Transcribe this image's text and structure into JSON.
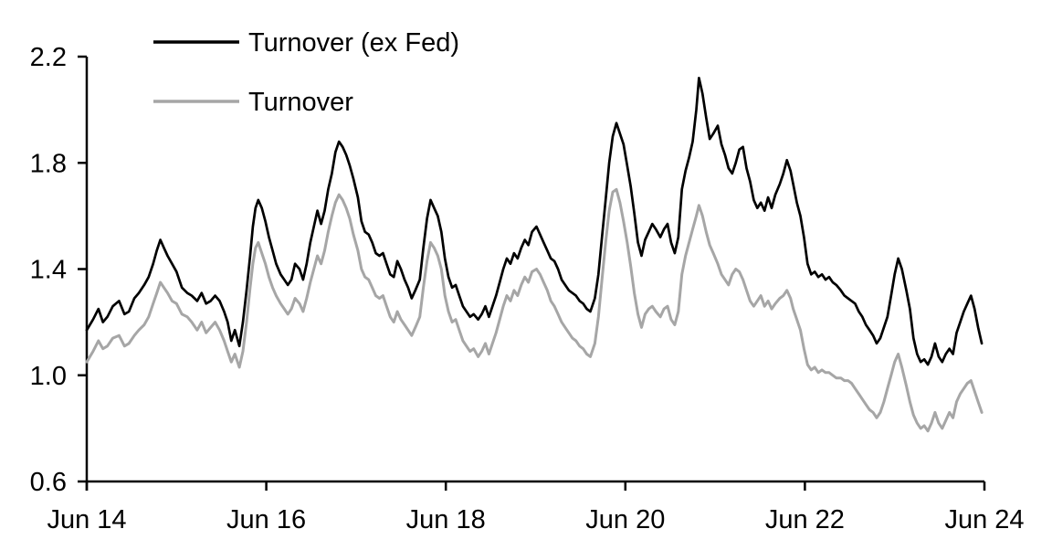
{
  "chart_data": {
    "type": "line",
    "title": "",
    "background": "#ffffff",
    "axis_color": "#000000",
    "grid": false,
    "legend_position": "top-left-inside",
    "x_axis": {
      "tick_labels": [
        "Jun 14",
        "Jun 16",
        "Jun 18",
        "Jun 20",
        "Jun 22",
        "Jun 24"
      ],
      "tick_positions": [
        0,
        2,
        4,
        6,
        8,
        10
      ],
      "range": [
        0,
        10
      ],
      "unit": "years since Jun 2014"
    },
    "y_axis": {
      "tick_labels": [
        "0.6",
        "1.0",
        "1.4",
        "1.8",
        "2.2"
      ],
      "tick_values": [
        0.6,
        1.0,
        1.4,
        1.8,
        2.2
      ],
      "range": [
        0.6,
        2.2
      ]
    },
    "t": [
      0.0,
      0.07,
      0.13,
      0.18,
      0.23,
      0.29,
      0.36,
      0.42,
      0.47,
      0.53,
      0.58,
      0.64,
      0.69,
      0.74,
      0.78,
      0.82,
      0.86,
      0.9,
      0.95,
      1.0,
      1.06,
      1.12,
      1.17,
      1.23,
      1.28,
      1.33,
      1.38,
      1.43,
      1.48,
      1.53,
      1.57,
      1.61,
      1.65,
      1.7,
      1.74,
      1.78,
      1.82,
      1.85,
      1.88,
      1.91,
      1.95,
      1.99,
      2.03,
      2.07,
      2.11,
      2.16,
      2.2,
      2.24,
      2.28,
      2.32,
      2.37,
      2.41,
      2.45,
      2.49,
      2.53,
      2.57,
      2.61,
      2.65,
      2.69,
      2.73,
      2.77,
      2.81,
      2.85,
      2.89,
      2.93,
      2.97,
      3.02,
      3.06,
      3.1,
      3.14,
      3.18,
      3.22,
      3.26,
      3.3,
      3.34,
      3.38,
      3.42,
      3.46,
      3.5,
      3.54,
      3.58,
      3.62,
      3.66,
      3.71,
      3.75,
      3.79,
      3.83,
      3.87,
      3.91,
      3.95,
      3.99,
      4.03,
      4.07,
      4.11,
      4.15,
      4.19,
      4.23,
      4.27,
      4.31,
      4.36,
      4.4,
      4.44,
      4.48,
      4.52,
      4.56,
      4.6,
      4.64,
      4.68,
      4.72,
      4.76,
      4.8,
      4.84,
      4.88,
      4.92,
      4.96,
      5.01,
      5.05,
      5.09,
      5.13,
      5.17,
      5.21,
      5.25,
      5.29,
      5.33,
      5.37,
      5.41,
      5.45,
      5.49,
      5.53,
      5.57,
      5.61,
      5.66,
      5.7,
      5.74,
      5.78,
      5.82,
      5.86,
      5.9,
      5.94,
      5.98,
      6.02,
      6.06,
      6.1,
      6.14,
      6.18,
      6.22,
      6.26,
      6.3,
      6.34,
      6.39,
      6.43,
      6.47,
      6.51,
      6.55,
      6.59,
      6.63,
      6.67,
      6.71,
      6.75,
      6.79,
      6.82,
      6.86,
      6.9,
      6.94,
      6.98,
      7.03,
      7.07,
      7.11,
      7.15,
      7.19,
      7.23,
      7.27,
      7.31,
      7.35,
      7.39,
      7.43,
      7.47,
      7.51,
      7.55,
      7.59,
      7.63,
      7.67,
      7.72,
      7.76,
      7.8,
      7.84,
      7.87,
      7.91,
      7.95,
      7.99,
      8.03,
      8.07,
      8.11,
      8.15,
      8.19,
      8.23,
      8.27,
      8.31,
      8.35,
      8.4,
      8.44,
      8.48,
      8.52,
      8.56,
      8.6,
      8.64,
      8.68,
      8.72,
      8.76,
      8.8,
      8.84,
      8.88,
      8.92,
      8.96,
      9.0,
      9.04,
      9.08,
      9.13,
      9.17,
      9.21,
      9.25,
      9.29,
      9.33,
      9.37,
      9.41,
      9.45,
      9.49,
      9.53,
      9.57,
      9.61,
      9.65,
      9.69,
      9.73,
      9.77,
      9.81,
      9.85,
      9.89,
      9.93,
      9.97
    ],
    "series": [
      {
        "name": "Turnover (ex Fed)",
        "color": "#000000",
        "stroke_width": 2.7,
        "values": [
          1.17,
          1.21,
          1.25,
          1.2,
          1.22,
          1.26,
          1.28,
          1.23,
          1.24,
          1.29,
          1.31,
          1.34,
          1.37,
          1.42,
          1.47,
          1.51,
          1.48,
          1.45,
          1.42,
          1.39,
          1.33,
          1.31,
          1.3,
          1.28,
          1.31,
          1.27,
          1.28,
          1.3,
          1.28,
          1.24,
          1.2,
          1.13,
          1.17,
          1.11,
          1.2,
          1.32,
          1.45,
          1.56,
          1.63,
          1.66,
          1.63,
          1.58,
          1.52,
          1.47,
          1.42,
          1.38,
          1.36,
          1.34,
          1.36,
          1.42,
          1.4,
          1.36,
          1.42,
          1.5,
          1.56,
          1.62,
          1.57,
          1.62,
          1.7,
          1.76,
          1.84,
          1.88,
          1.86,
          1.83,
          1.79,
          1.74,
          1.67,
          1.58,
          1.54,
          1.53,
          1.5,
          1.46,
          1.45,
          1.46,
          1.42,
          1.38,
          1.37,
          1.43,
          1.4,
          1.36,
          1.33,
          1.29,
          1.32,
          1.36,
          1.48,
          1.59,
          1.66,
          1.63,
          1.6,
          1.54,
          1.44,
          1.37,
          1.33,
          1.34,
          1.3,
          1.26,
          1.24,
          1.22,
          1.23,
          1.21,
          1.23,
          1.26,
          1.22,
          1.26,
          1.3,
          1.35,
          1.4,
          1.44,
          1.42,
          1.46,
          1.44,
          1.48,
          1.51,
          1.49,
          1.54,
          1.56,
          1.53,
          1.5,
          1.47,
          1.44,
          1.43,
          1.4,
          1.36,
          1.34,
          1.32,
          1.31,
          1.3,
          1.28,
          1.27,
          1.25,
          1.24,
          1.29,
          1.38,
          1.52,
          1.66,
          1.8,
          1.9,
          1.95,
          1.91,
          1.87,
          1.79,
          1.71,
          1.61,
          1.5,
          1.45,
          1.51,
          1.54,
          1.57,
          1.55,
          1.52,
          1.55,
          1.57,
          1.5,
          1.46,
          1.52,
          1.7,
          1.77,
          1.82,
          1.88,
          2.0,
          2.12,
          2.06,
          1.97,
          1.89,
          1.91,
          1.94,
          1.87,
          1.83,
          1.78,
          1.76,
          1.8,
          1.85,
          1.86,
          1.78,
          1.73,
          1.66,
          1.63,
          1.65,
          1.62,
          1.67,
          1.63,
          1.68,
          1.72,
          1.76,
          1.81,
          1.77,
          1.72,
          1.65,
          1.6,
          1.52,
          1.42,
          1.38,
          1.39,
          1.37,
          1.38,
          1.36,
          1.37,
          1.35,
          1.34,
          1.32,
          1.3,
          1.29,
          1.28,
          1.27,
          1.24,
          1.22,
          1.19,
          1.17,
          1.15,
          1.12,
          1.14,
          1.18,
          1.22,
          1.3,
          1.38,
          1.44,
          1.4,
          1.32,
          1.25,
          1.14,
          1.08,
          1.05,
          1.06,
          1.04,
          1.07,
          1.12,
          1.07,
          1.05,
          1.08,
          1.1,
          1.08,
          1.16,
          1.2,
          1.24,
          1.27,
          1.3,
          1.25,
          1.18,
          1.12
        ]
      },
      {
        "name": "Turnover",
        "color": "#a6a6a6",
        "stroke_width": 3.0,
        "values": [
          1.05,
          1.09,
          1.13,
          1.1,
          1.11,
          1.14,
          1.15,
          1.11,
          1.12,
          1.15,
          1.17,
          1.19,
          1.22,
          1.27,
          1.31,
          1.35,
          1.33,
          1.31,
          1.28,
          1.27,
          1.23,
          1.22,
          1.2,
          1.17,
          1.2,
          1.16,
          1.18,
          1.2,
          1.17,
          1.13,
          1.09,
          1.05,
          1.08,
          1.03,
          1.09,
          1.2,
          1.33,
          1.42,
          1.48,
          1.5,
          1.46,
          1.42,
          1.37,
          1.33,
          1.3,
          1.27,
          1.25,
          1.23,
          1.25,
          1.29,
          1.27,
          1.24,
          1.29,
          1.35,
          1.4,
          1.45,
          1.42,
          1.47,
          1.54,
          1.6,
          1.65,
          1.68,
          1.66,
          1.63,
          1.59,
          1.53,
          1.47,
          1.4,
          1.37,
          1.36,
          1.33,
          1.3,
          1.29,
          1.3,
          1.26,
          1.22,
          1.2,
          1.24,
          1.21,
          1.19,
          1.17,
          1.15,
          1.18,
          1.22,
          1.33,
          1.43,
          1.5,
          1.48,
          1.45,
          1.4,
          1.3,
          1.24,
          1.2,
          1.21,
          1.17,
          1.13,
          1.11,
          1.09,
          1.1,
          1.07,
          1.09,
          1.12,
          1.08,
          1.12,
          1.16,
          1.21,
          1.26,
          1.3,
          1.28,
          1.32,
          1.3,
          1.34,
          1.37,
          1.35,
          1.39,
          1.4,
          1.38,
          1.35,
          1.32,
          1.28,
          1.26,
          1.23,
          1.2,
          1.18,
          1.16,
          1.14,
          1.13,
          1.11,
          1.1,
          1.08,
          1.07,
          1.12,
          1.22,
          1.36,
          1.5,
          1.62,
          1.69,
          1.7,
          1.65,
          1.58,
          1.5,
          1.41,
          1.31,
          1.23,
          1.18,
          1.23,
          1.25,
          1.26,
          1.24,
          1.22,
          1.25,
          1.26,
          1.21,
          1.19,
          1.24,
          1.38,
          1.45,
          1.5,
          1.55,
          1.6,
          1.64,
          1.6,
          1.54,
          1.49,
          1.46,
          1.42,
          1.38,
          1.36,
          1.34,
          1.38,
          1.4,
          1.39,
          1.36,
          1.32,
          1.28,
          1.26,
          1.28,
          1.3,
          1.26,
          1.28,
          1.25,
          1.27,
          1.29,
          1.3,
          1.32,
          1.29,
          1.25,
          1.21,
          1.17,
          1.1,
          1.04,
          1.02,
          1.03,
          1.01,
          1.02,
          1.01,
          1.01,
          1.0,
          0.99,
          0.99,
          0.98,
          0.98,
          0.97,
          0.95,
          0.93,
          0.91,
          0.89,
          0.87,
          0.86,
          0.84,
          0.86,
          0.9,
          0.95,
          1.0,
          1.05,
          1.08,
          1.03,
          0.96,
          0.9,
          0.85,
          0.82,
          0.8,
          0.81,
          0.79,
          0.82,
          0.86,
          0.82,
          0.8,
          0.83,
          0.86,
          0.84,
          0.9,
          0.93,
          0.95,
          0.97,
          0.98,
          0.94,
          0.9,
          0.86
        ]
      }
    ],
    "legend": [
      {
        "label": "Turnover (ex Fed)",
        "color": "#000000"
      },
      {
        "label": "Turnover",
        "color": "#a6a6a6"
      }
    ]
  }
}
